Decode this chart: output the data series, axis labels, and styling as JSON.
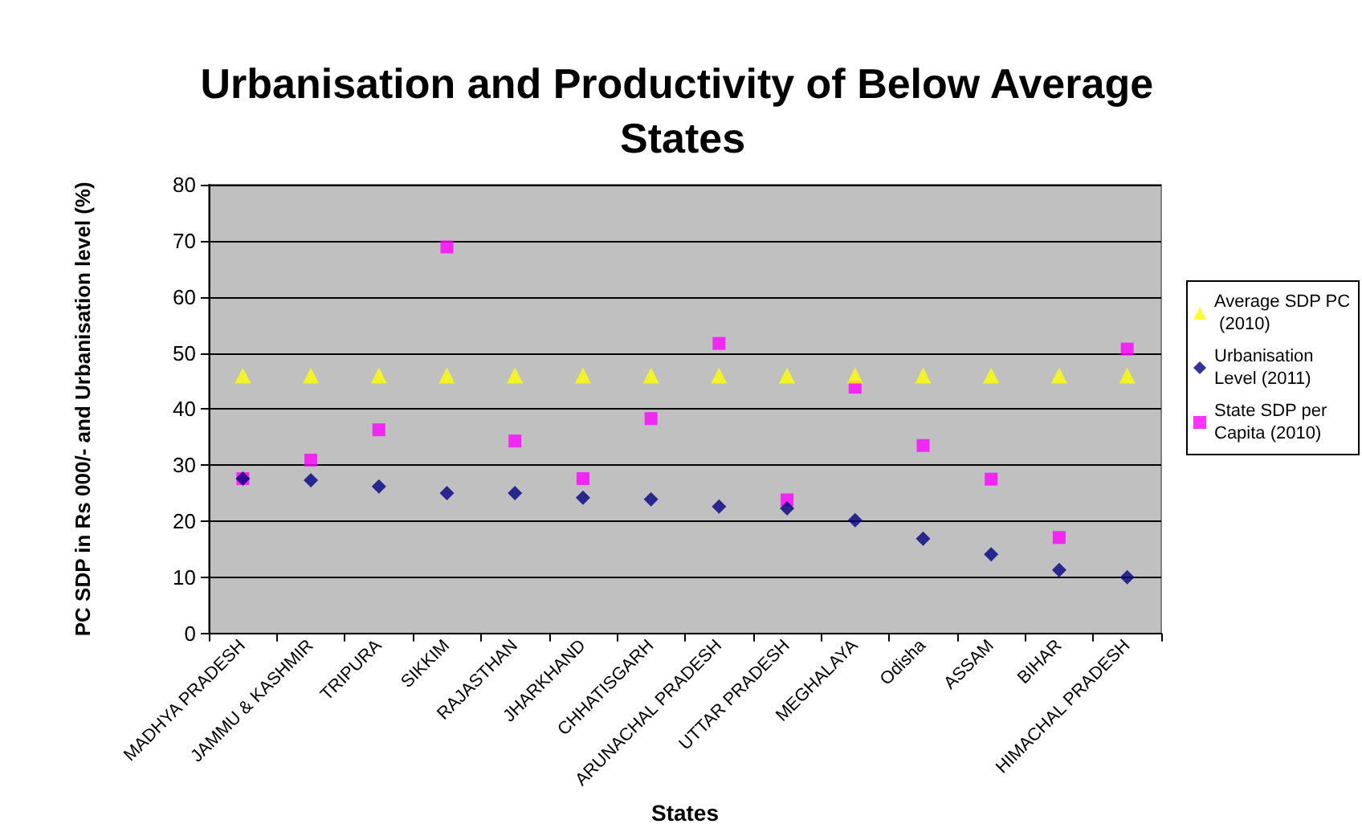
{
  "chart_data": {
    "type": "scatter",
    "title": "Urbanisation and Productivity of Below Average States",
    "xlabel": "States",
    "ylabel": "PC SDP in Rs 000/- and Urbanisation level (%)",
    "categories": [
      "MADHYA PRADESH",
      "JAMMU & KASHMIR",
      "TRIPURA",
      "SIKKIM",
      "RAJASTHAN",
      "JHARKHAND",
      "CHHATISGARH",
      "ARUNACHAL PRADESH",
      "UTTAR PRADESH",
      "MEGHALAYA",
      "Odisha",
      "ASSAM",
      "BIHAR",
      "HIMACHAL PRADESH"
    ],
    "series": [
      {
        "name": "Average SDP PC (2010)",
        "color": "#ffff00",
        "marker": "triangle",
        "values": [
          46,
          46,
          46,
          46,
          46,
          46,
          46,
          46,
          46,
          46,
          46,
          46,
          46,
          46
        ]
      },
      {
        "name": "Urbanisation Level (2011)",
        "color": "#000080",
        "marker": "diamond",
        "values": [
          27.6,
          27.3,
          26.2,
          25.0,
          25.0,
          24.2,
          23.9,
          22.6,
          22.3,
          20.2,
          16.9,
          14.1,
          11.3,
          10.0
        ]
      },
      {
        "name": "State SDP per Capita (2010)",
        "color": "#ff00ff",
        "marker": "square",
        "values": [
          27.6,
          30.9,
          36.3,
          68.9,
          34.3,
          27.6,
          38.3,
          51.7,
          23.8,
          43.9,
          33.5,
          27.5,
          17.1,
          50.7
        ]
      }
    ],
    "ylim": [
      0,
      80
    ],
    "yticks": [
      0,
      10,
      20,
      30,
      40,
      50,
      60,
      70,
      80
    ],
    "grid": "y",
    "legend": "right"
  }
}
